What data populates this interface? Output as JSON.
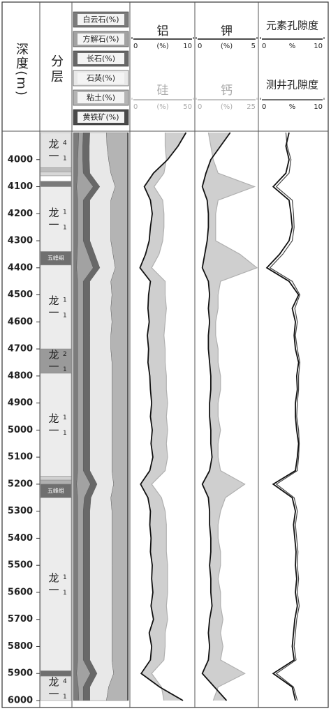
{
  "chart_data": {
    "type": "well-log",
    "depth_label": "深度(m)",
    "layer_label": "分层",
    "ylim": [
      3900,
      6000
    ],
    "yticks": [
      4000,
      4100,
      4200,
      4300,
      4400,
      4500,
      4600,
      4700,
      4800,
      4900,
      5000,
      5100,
      5200,
      5300,
      5400,
      5500,
      5600,
      5700,
      5800,
      5900,
      6000
    ],
    "depth": [
      3900,
      3950,
      4000,
      4050,
      4100,
      4150,
      4200,
      4250,
      4300,
      4350,
      4400,
      4450,
      4500,
      4550,
      4600,
      4650,
      4700,
      4750,
      4800,
      4850,
      4900,
      4950,
      5000,
      5050,
      5100,
      5150,
      5200,
      5250,
      5300,
      5350,
      5400,
      5450,
      5500,
      5550,
      5600,
      5650,
      5700,
      5750,
      5800,
      5850,
      5900,
      5950,
      6000
    ],
    "layers": [
      {
        "top": 3900,
        "bottom": 4030,
        "name": "龙一",
        "sub": "1",
        "sup": "4",
        "color": "#e4e4e4"
      },
      {
        "top": 4030,
        "bottom": 4045,
        "color": "#bdbdbd"
      },
      {
        "top": 4045,
        "bottom": 4060,
        "color": "#d8d8d8"
      },
      {
        "top": 4060,
        "bottom": 4080,
        "color": "#ffffff"
      },
      {
        "top": 4080,
        "bottom": 4100,
        "color": "#7a7a7a"
      },
      {
        "top": 4100,
        "bottom": 4340,
        "name": "龙一",
        "sub": "1",
        "sup": "1",
        "color": "#ececec"
      },
      {
        "top": 4340,
        "bottom": 4390,
        "name": "五峰组",
        "color": "#6f6f6f"
      },
      {
        "top": 4390,
        "bottom": 4700,
        "name": "龙一",
        "sub": "1",
        "sup": "1",
        "color": "#ececec"
      },
      {
        "top": 4700,
        "bottom": 4790,
        "name": "龙一",
        "sub": "1",
        "sup": "2",
        "color": "#9a9a9a"
      },
      {
        "top": 4790,
        "bottom": 5170,
        "name": "龙一",
        "sub": "1",
        "sup": "1",
        "color": "#ececec"
      },
      {
        "top": 5170,
        "bottom": 5185,
        "color": "#d0d0d0"
      },
      {
        "top": 5185,
        "bottom": 5200,
        "color": "#b0b0b0"
      },
      {
        "top": 5200,
        "bottom": 5250,
        "name": "五峰组",
        "color": "#6f6f6f"
      },
      {
        "top": 5250,
        "bottom": 5890,
        "name": "龙一",
        "sub": "1",
        "sup": "1",
        "color": "#ececec"
      },
      {
        "top": 5890,
        "bottom": 5910,
        "color": "#6f6f6f"
      },
      {
        "top": 5910,
        "bottom": 6000,
        "name": "龙一",
        "sub": "1",
        "sup": "4",
        "color": "#e4e4e4"
      }
    ],
    "lithology": {
      "series": [
        {
          "name": "白云石(%)",
          "color": "#7c7c7c",
          "values": [
            10,
            9,
            8,
            8,
            6,
            8,
            8,
            8,
            8,
            7,
            6,
            8,
            8,
            8,
            8,
            8,
            8,
            8,
            8,
            8,
            8,
            8,
            8,
            8,
            8,
            8,
            6,
            8,
            8,
            8,
            8,
            8,
            8,
            8,
            8,
            8,
            8,
            8,
            8,
            8,
            6,
            9,
            10
          ]
        },
        {
          "name": "方解石(%)",
          "color": "#a2a2a2",
          "values": [
            8,
            8,
            9,
            10,
            30,
            10,
            10,
            10,
            10,
            20,
            30,
            10,
            10,
            10,
            10,
            10,
            10,
            10,
            10,
            10,
            10,
            10,
            10,
            10,
            10,
            10,
            25,
            12,
            10,
            10,
            10,
            10,
            10,
            10,
            10,
            10,
            10,
            10,
            10,
            10,
            25,
            9,
            8
          ]
        },
        {
          "name": "长石(%)",
          "color": "#686868",
          "values": [
            12,
            12,
            12,
            12,
            12,
            12,
            12,
            12,
            12,
            12,
            12,
            12,
            12,
            12,
            12,
            12,
            12,
            12,
            12,
            12,
            12,
            12,
            12,
            12,
            12,
            12,
            12,
            12,
            12,
            12,
            12,
            12,
            12,
            12,
            12,
            12,
            12,
            12,
            12,
            12,
            12,
            12,
            12
          ]
        },
        {
          "name": "石英(%)",
          "color": "#e8e8e8",
          "values": [
            30,
            32,
            35,
            38,
            28,
            38,
            38,
            38,
            38,
            33,
            28,
            38,
            40,
            38,
            40,
            38,
            38,
            40,
            40,
            40,
            40,
            40,
            40,
            40,
            40,
            40,
            30,
            36,
            40,
            40,
            40,
            40,
            40,
            40,
            40,
            40,
            40,
            40,
            40,
            40,
            30,
            34,
            30
          ]
        },
        {
          "name": "粘土(%)",
          "color": "#b4b4b4",
          "values": [
            38,
            37,
            34,
            30,
            22,
            30,
            30,
            30,
            30,
            26,
            22,
            30,
            28,
            30,
            28,
            30,
            30,
            28,
            28,
            28,
            28,
            28,
            28,
            28,
            28,
            28,
            25,
            30,
            28,
            28,
            28,
            28,
            28,
            28,
            28,
            28,
            28,
            28,
            28,
            28,
            25,
            34,
            38
          ]
        },
        {
          "name": "黄铁矿(%)",
          "color": "#4a4a4a",
          "values": [
            2,
            2,
            2,
            2,
            2,
            2,
            2,
            2,
            2,
            2,
            2,
            2,
            2,
            2,
            2,
            2,
            2,
            2,
            2,
            2,
            2,
            2,
            2,
            2,
            2,
            2,
            2,
            2,
            2,
            2,
            2,
            2,
            2,
            2,
            2,
            2,
            2,
            2,
            2,
            2,
            2,
            2,
            2
          ]
        }
      ]
    },
    "tracks": [
      {
        "shade_between": true,
        "curves": [
          {
            "name": "铝",
            "color": "#111111",
            "unit": "(%)",
            "xlim": [
              0,
              10
            ],
            "xticks": [
              0,
              10
            ],
            "values": [
              8.8,
              7.5,
              5.8,
              3.5,
              2,
              3,
              3.3,
              3,
              2.8,
              2.2,
              1.3,
              3,
              2.7,
              2.6,
              2.8,
              2.5,
              2.7,
              2.6,
              2.9,
              3,
              3.2,
              3,
              3.3,
              3.1,
              3.4,
              2.9,
              1.4,
              2.6,
              3,
              2.9,
              3.1,
              3,
              3.3,
              3.2,
              3.4,
              3.1,
              3.5,
              2.8,
              3.2,
              3,
              1.5,
              4.5,
              8.3
            ]
          },
          {
            "name": "硅",
            "color": "#b0b0b0",
            "unit": "(%)",
            "xlim": [
              0,
              50
            ],
            "xticks": [
              0,
              50
            ],
            "values": [
              27,
              27,
              28,
              26,
              18,
              25,
              26,
              26,
              25,
              22,
              16,
              27,
              27,
              28,
              27,
              26,
              27,
              27,
              28,
              28,
              29,
              28,
              29,
              28,
              29,
              27,
              16,
              24,
              27,
              28,
              28,
              28,
              29,
              29,
              29,
              28,
              29,
              27,
              27,
              26,
              16,
              24,
              26
            ]
          }
        ]
      },
      {
        "shade_between": true,
        "curves": [
          {
            "name": "钾",
            "color": "#111111",
            "unit": "(%)",
            "xlim": [
              0,
              5
            ],
            "xticks": [
              0,
              5
            ],
            "values": [
              2.8,
              2,
              1.2,
              0.8,
              0.5,
              0.9,
              1,
              1,
              0.9,
              0.7,
              0.5,
              1,
              1.1,
              1,
              1.1,
              1,
              1,
              1.1,
              1.2,
              1.2,
              1.1,
              1.1,
              1.2,
              1.2,
              1.3,
              1.1,
              0.5,
              1,
              1.1,
              1.1,
              1.2,
              1.2,
              1.1,
              1.2,
              1.2,
              1.3,
              1.1,
              1,
              1.1,
              1,
              0.5,
              1.5,
              2.5
            ]
          },
          {
            "name": "钙",
            "color": "#b0b0b0",
            "unit": "(%)",
            "xlim": [
              0,
              25
            ],
            "xticks": [
              0,
              25
            ],
            "values": [
              5,
              6,
              7,
              9,
              24,
              9,
              8,
              8,
              8,
              18,
              25,
              10,
              9,
              9,
              8,
              8,
              9,
              9,
              10,
              10,
              9,
              9,
              10,
              9,
              9,
              10,
              20,
              12,
              10,
              9,
              9,
              10,
              10,
              9,
              10,
              10,
              11,
              10,
              11,
              10,
              20,
              9,
              7
            ]
          }
        ]
      },
      {
        "shade_between": false,
        "curves": [
          {
            "name": "元素孔隙度",
            "color": "#111111",
            "unit": "%",
            "xlim": [
              0,
              10
            ],
            "xticks": [
              0,
              10
            ],
            "values": [
              4.5,
              4,
              4.5,
              4,
              2,
              4.5,
              4.8,
              5,
              4.5,
              3,
              1,
              4.5,
              6,
              5,
              5.5,
              5.3,
              5.5,
              6,
              5.7,
              5.8,
              5.5,
              5.5,
              5.7,
              6,
              5.8,
              5.5,
              2,
              5,
              5.5,
              5.2,
              5.4,
              5.6,
              5.5,
              5.7,
              5.5,
              5.8,
              5.4,
              5.2,
              5,
              5.3,
              2,
              5,
              5.5
            ]
          },
          {
            "name": "测井孔隙度",
            "color": "#444444",
            "unit": "%",
            "xlim": [
              0,
              10
            ],
            "xticks": [
              0,
              10
            ],
            "values": [
              4,
              4.2,
              4.8,
              4.5,
              2.5,
              5,
              5.2,
              5.3,
              5,
              3.5,
              1.5,
              5,
              6.2,
              5.4,
              5.8,
              5.5,
              5.8,
              6.2,
              6,
              6,
              5.8,
              5.7,
              6,
              6.1,
              6,
              5.8,
              2.5,
              5.3,
              5.8,
              5.5,
              5.7,
              5.9,
              5.8,
              6,
              5.8,
              6.1,
              5.7,
              5.5,
              5.3,
              5.6,
              2.5,
              5.2,
              5.8
            ]
          }
        ]
      }
    ]
  }
}
